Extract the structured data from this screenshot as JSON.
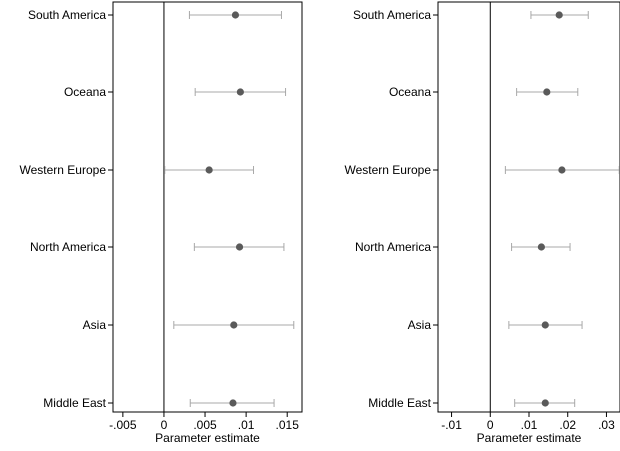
{
  "chart_data": [
    {
      "type": "scatter",
      "xlabel": "Parameter estimate",
      "categories": [
        "South America",
        "Oceana",
        "Western Europe",
        "North America",
        "Asia",
        "Middle East"
      ],
      "points": [
        {
          "category": "South America",
          "estimate": 0.0087,
          "ci_low": 0.0031,
          "ci_high": 0.0143
        },
        {
          "category": "Oceana",
          "estimate": 0.0093,
          "ci_low": 0.0038,
          "ci_high": 0.0148
        },
        {
          "category": "Western Europe",
          "estimate": 0.0055,
          "ci_low": 0.0001,
          "ci_high": 0.0109
        },
        {
          "category": "North America",
          "estimate": 0.0092,
          "ci_low": 0.0037,
          "ci_high": 0.0146
        },
        {
          "category": "Asia",
          "estimate": 0.0085,
          "ci_low": 0.0012,
          "ci_high": 0.0158
        },
        {
          "category": "Middle East",
          "estimate": 0.0084,
          "ci_low": 0.0032,
          "ci_high": 0.0134
        }
      ],
      "xlim": [
        -0.0062,
        0.0168
      ],
      "ticks": [
        -0.005,
        0,
        0.005,
        0.01,
        0.015
      ],
      "tick_labels": [
        "-.005",
        "0",
        ".005",
        ".01",
        ".015"
      ],
      "reference_line": 0,
      "grid": false,
      "colors": {
        "marker": "#5a5a5a",
        "ci": "#a8a8a8",
        "axis": "#000000"
      }
    },
    {
      "type": "scatter",
      "xlabel": "Parameter estimate",
      "categories": [
        "South America",
        "Oceana",
        "Western Europe",
        "North America",
        "Asia",
        "Middle East"
      ],
      "points": [
        {
          "category": "South America",
          "estimate": 0.0178,
          "ci_low": 0.0105,
          "ci_high": 0.0253
        },
        {
          "category": "Oceana",
          "estimate": 0.0146,
          "ci_low": 0.0068,
          "ci_high": 0.0226
        },
        {
          "category": "Western Europe",
          "estimate": 0.0185,
          "ci_low": 0.0039,
          "ci_high": 0.0333
        },
        {
          "category": "North America",
          "estimate": 0.0132,
          "ci_low": 0.0055,
          "ci_high": 0.0206
        },
        {
          "category": "Asia",
          "estimate": 0.0142,
          "ci_low": 0.0048,
          "ci_high": 0.0237
        },
        {
          "category": "Middle East",
          "estimate": 0.0142,
          "ci_low": 0.0063,
          "ci_high": 0.0218
        }
      ],
      "xlim": [
        -0.0135,
        0.0335
      ],
      "ticks": [
        -0.01,
        0,
        0.01,
        0.02,
        0.03
      ],
      "tick_labels": [
        "-.01",
        "0",
        ".01",
        ".02",
        ".03"
      ],
      "reference_line": 0,
      "grid": false,
      "colors": {
        "marker": "#5a5a5a",
        "ci": "#a8a8a8",
        "axis": "#000000"
      }
    }
  ]
}
